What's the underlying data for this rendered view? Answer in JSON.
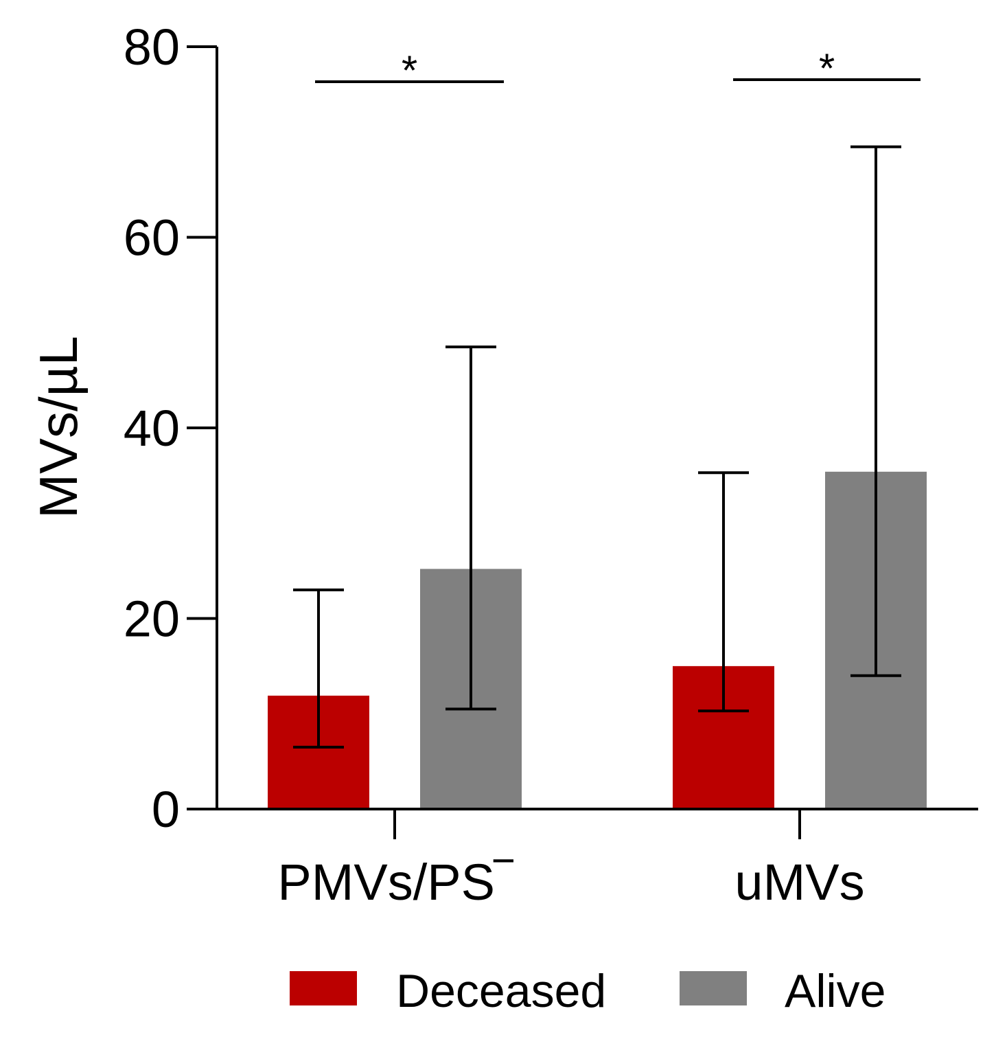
{
  "chart_data": {
    "type": "bar",
    "title": "",
    "xlabel": "",
    "ylabel": "MVs/µL",
    "ylim": [
      0,
      80
    ],
    "yticks": [
      0,
      20,
      40,
      60,
      80
    ],
    "categories": [
      "PMVs/PS‾",
      "uMVs"
    ],
    "series": [
      {
        "name": "Deceased",
        "color": "#bb0000",
        "values": [
          11.9,
          15.0
        ],
        "err_low": [
          6.5,
          10.3
        ],
        "err_high": [
          23.0,
          35.3
        ]
      },
      {
        "name": "Alive",
        "color": "#808080",
        "values": [
          25.2,
          35.4
        ],
        "err_low": [
          10.5,
          14.0
        ],
        "err_high": [
          48.5,
          69.5
        ]
      }
    ],
    "significance": [
      {
        "category": "PMVs/PS‾",
        "label": "*"
      },
      {
        "category": "uMVs",
        "label": "*"
      }
    ],
    "legend_position": "bottom"
  }
}
